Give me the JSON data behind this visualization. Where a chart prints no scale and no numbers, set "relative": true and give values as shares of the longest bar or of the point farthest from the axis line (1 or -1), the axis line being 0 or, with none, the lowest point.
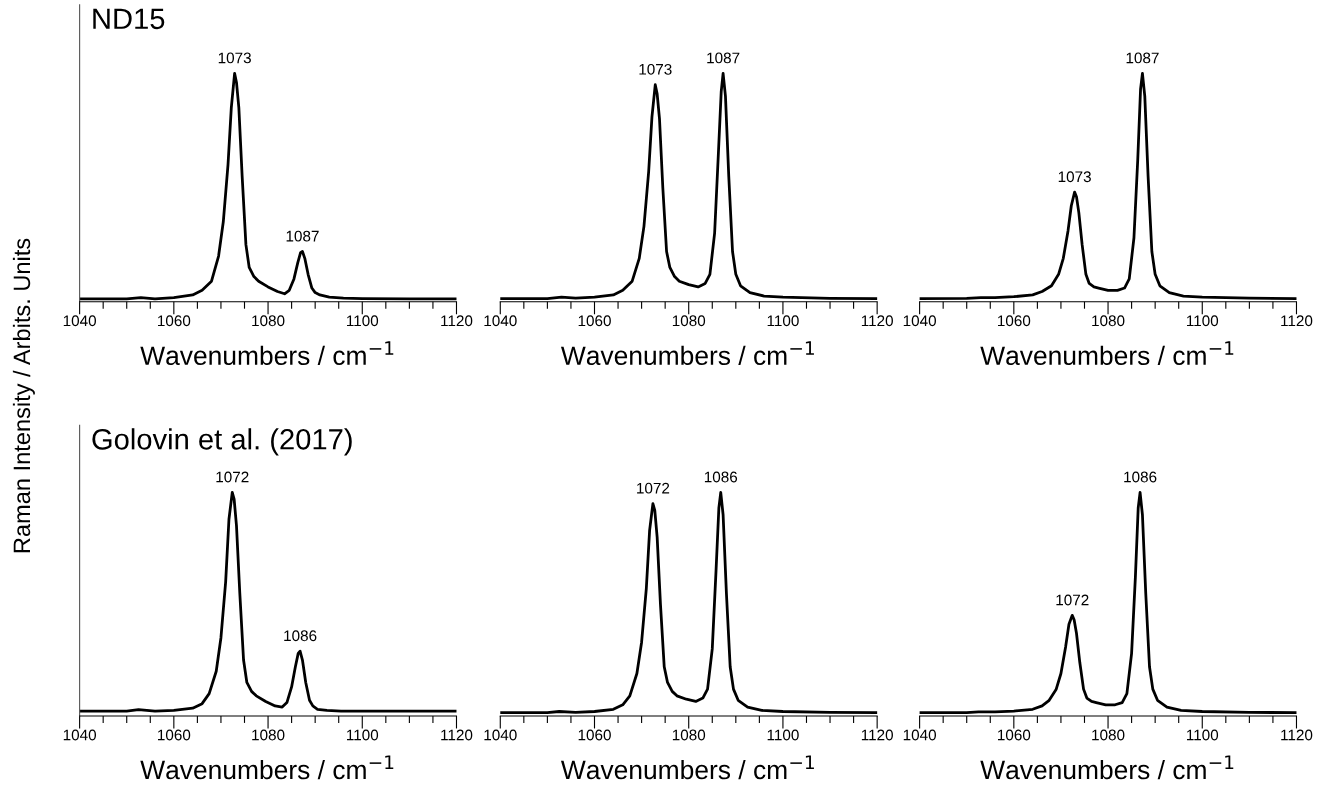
{
  "chart_data": [
    {
      "type": "line",
      "relative": true,
      "title": "ND15",
      "ylabel": "Raman Intensity / Arbits. Units",
      "xlabel": "Wavenumbers / cm$^{−1}$",
      "xlim": [
        1040,
        1120
      ],
      "tick_labels": "x",
      "grid": false,
      "legend": false,
      "marker": "none",
      "line_style": "solid",
      "xticks": [
        1040,
        {
          "value": 1045,
          "label": null
        },
        {
          "value": 1050,
          "label": null
        },
        {
          "value": 1055,
          "label": null
        },
        1060,
        {
          "value": 1065,
          "label": null
        },
        {
          "value": 1070,
          "label": null
        },
        {
          "value": 1075,
          "label": null
        },
        1080,
        {
          "value": 1085,
          "label": null
        },
        {
          "value": 1090,
          "label": null
        },
        {
          "value": 1095,
          "label": null
        },
        1100,
        {
          "value": 1105,
          "label": null
        },
        {
          "value": 1110,
          "label": null
        },
        {
          "value": 1115,
          "label": null
        },
        1120
      ],
      "x": [
        1040,
        1050,
        1053,
        1056,
        1060,
        1064,
        1066,
        1068,
        1069.5,
        1070.5,
        1071.5,
        1072.2,
        1072.9,
        1073.3,
        1073.8,
        1074.5,
        1075.3,
        1076,
        1077,
        1078,
        1080,
        1082,
        1083.5,
        1084.5,
        1085.5,
        1086.3,
        1086.9,
        1087.3,
        1087.8,
        1088.5,
        1089.3,
        1090,
        1091,
        1093,
        1096,
        1100,
        1110,
        1120
      ],
      "series": [
        {
          "color": "#000000",
          "values": [
            0.013,
            0.013,
            0.018,
            0.013,
            0.018,
            0.03,
            0.05,
            0.09,
            0.2,
            0.35,
            0.6,
            0.85,
            1.0,
            0.96,
            0.85,
            0.55,
            0.25,
            0.15,
            0.11,
            0.09,
            0.065,
            0.045,
            0.035,
            0.05,
            0.1,
            0.17,
            0.215,
            0.22,
            0.19,
            0.12,
            0.06,
            0.04,
            0.03,
            0.02,
            0.016,
            0.014,
            0.013,
            0.013
          ]
        }
      ],
      "annotations": [
        {
          "text": "1073",
          "x": 1072.9,
          "y": 1.0
        },
        {
          "text": "1087",
          "x": 1087.3,
          "y": 0.22
        }
      ]
    },
    {
      "type": "line",
      "relative": true,
      "xlabel": "Wavenumbers / cm$^{−1}$",
      "xlim": [
        1040,
        1120
      ],
      "tick_labels": "x",
      "grid": false,
      "legend": false,
      "marker": "none",
      "line_style": "solid",
      "xticks": [
        1040,
        {
          "value": 1045,
          "label": null
        },
        {
          "value": 1050,
          "label": null
        },
        {
          "value": 1055,
          "label": null
        },
        1060,
        {
          "value": 1065,
          "label": null
        },
        {
          "value": 1070,
          "label": null
        },
        {
          "value": 1075,
          "label": null
        },
        1080,
        {
          "value": 1085,
          "label": null
        },
        {
          "value": 1090,
          "label": null
        },
        {
          "value": 1095,
          "label": null
        },
        1100,
        {
          "value": 1105,
          "label": null
        },
        {
          "value": 1110,
          "label": null
        },
        {
          "value": 1115,
          "label": null
        },
        1120
      ],
      "x": [
        1040,
        1050,
        1053,
        1056,
        1060,
        1064,
        1066,
        1068,
        1069.5,
        1070.5,
        1071.5,
        1072.2,
        1072.9,
        1073.3,
        1073.8,
        1074.5,
        1075.3,
        1076,
        1077,
        1078,
        1080,
        1082,
        1083.5,
        1084.5,
        1085.5,
        1086.3,
        1086.9,
        1087.3,
        1087.8,
        1088.5,
        1089.3,
        1090,
        1091,
        1093,
        1096,
        1100,
        1110,
        1120
      ],
      "series": [
        {
          "color": "#000000",
          "values": [
            0.014,
            0.014,
            0.02,
            0.016,
            0.02,
            0.03,
            0.05,
            0.09,
            0.19,
            0.33,
            0.57,
            0.81,
            0.95,
            0.91,
            0.8,
            0.5,
            0.22,
            0.15,
            0.11,
            0.09,
            0.075,
            0.065,
            0.08,
            0.12,
            0.3,
            0.65,
            0.92,
            1.0,
            0.9,
            0.55,
            0.22,
            0.12,
            0.07,
            0.04,
            0.025,
            0.02,
            0.015,
            0.014
          ]
        }
      ],
      "annotations": [
        {
          "text": "1073",
          "x": 1072.9,
          "y": 0.95
        },
        {
          "text": "1087",
          "x": 1087.3,
          "y": 1.0
        }
      ]
    },
    {
      "type": "line",
      "relative": true,
      "xlabel": "Wavenumbers / cm$^{−1}$",
      "xlim": [
        1040,
        1120
      ],
      "tick_labels": "x",
      "grid": false,
      "legend": false,
      "marker": "none",
      "line_style": "solid",
      "xticks": [
        1040,
        {
          "value": 1045,
          "label": null
        },
        {
          "value": 1050,
          "label": null
        },
        {
          "value": 1055,
          "label": null
        },
        1060,
        {
          "value": 1065,
          "label": null
        },
        {
          "value": 1070,
          "label": null
        },
        {
          "value": 1075,
          "label": null
        },
        1080,
        {
          "value": 1085,
          "label": null
        },
        {
          "value": 1090,
          "label": null
        },
        {
          "value": 1095,
          "label": null
        },
        1100,
        {
          "value": 1105,
          "label": null
        },
        {
          "value": 1110,
          "label": null
        },
        {
          "value": 1115,
          "label": null
        },
        1120
      ],
      "x": [
        1040,
        1050,
        1053,
        1056,
        1060,
        1064,
        1066,
        1068,
        1069.5,
        1070.5,
        1071.5,
        1072.2,
        1072.9,
        1073.3,
        1073.8,
        1074.5,
        1075.3,
        1076,
        1077,
        1078,
        1080,
        1082,
        1083.5,
        1084.5,
        1085.5,
        1086.3,
        1086.9,
        1087.3,
        1087.8,
        1088.5,
        1089.3,
        1090,
        1091,
        1093,
        1096,
        1100,
        1110,
        1120
      ],
      "series": [
        {
          "color": "#000000",
          "values": [
            0.014,
            0.015,
            0.018,
            0.018,
            0.022,
            0.03,
            0.045,
            0.07,
            0.12,
            0.19,
            0.31,
            0.42,
            0.48,
            0.46,
            0.39,
            0.25,
            0.12,
            0.08,
            0.065,
            0.06,
            0.05,
            0.05,
            0.06,
            0.1,
            0.28,
            0.62,
            0.93,
            1.0,
            0.9,
            0.55,
            0.22,
            0.12,
            0.07,
            0.04,
            0.025,
            0.02,
            0.016,
            0.014
          ]
        }
      ],
      "annotations": [
        {
          "text": "1073",
          "x": 1072.9,
          "y": 0.48
        },
        {
          "text": "1087",
          "x": 1087.3,
          "y": 1.0
        }
      ]
    },
    {
      "type": "line",
      "relative": true,
      "title": "Golovin et al. (2017)",
      "xlabel": "Wavenumbers / cm$^{−1}$",
      "xlim": [
        1040,
        1120
      ],
      "tick_labels": "x",
      "grid": false,
      "legend": false,
      "marker": "none",
      "line_style": "solid",
      "xticks": [
        1040,
        {
          "value": 1045,
          "label": null
        },
        {
          "value": 1050,
          "label": null
        },
        {
          "value": 1055,
          "label": null
        },
        1060,
        {
          "value": 1065,
          "label": null
        },
        {
          "value": 1070,
          "label": null
        },
        {
          "value": 1075,
          "label": null
        },
        1080,
        {
          "value": 1085,
          "label": null
        },
        {
          "value": 1090,
          "label": null
        },
        {
          "value": 1095,
          "label": null
        },
        1100,
        {
          "value": 1105,
          "label": null
        },
        {
          "value": 1110,
          "label": null
        },
        {
          "value": 1115,
          "label": null
        },
        1120
      ],
      "x": [
        1040,
        1050,
        1052.5,
        1056,
        1060,
        1064,
        1066,
        1067.5,
        1069,
        1070,
        1071,
        1071.7,
        1072.4,
        1072.8,
        1073.3,
        1074,
        1074.8,
        1075.5,
        1076.5,
        1077.5,
        1079.5,
        1081.5,
        1083,
        1084,
        1085,
        1085.8,
        1086.4,
        1086.8,
        1087.3,
        1088,
        1088.8,
        1089.5,
        1090.5,
        1092.5,
        1095.5,
        1100,
        1110,
        1120
      ],
      "series": [
        {
          "color": "#000000",
          "values": [
            0.022,
            0.022,
            0.028,
            0.022,
            0.025,
            0.035,
            0.055,
            0.1,
            0.2,
            0.35,
            0.6,
            0.88,
            1.0,
            0.97,
            0.85,
            0.55,
            0.25,
            0.15,
            0.11,
            0.09,
            0.065,
            0.045,
            0.04,
            0.06,
            0.13,
            0.22,
            0.28,
            0.29,
            0.25,
            0.15,
            0.07,
            0.045,
            0.03,
            0.025,
            0.022,
            0.022,
            0.022,
            0.022
          ]
        }
      ],
      "annotations": [
        {
          "text": "1072",
          "x": 1072.4,
          "y": 1.0
        },
        {
          "text": "1086",
          "x": 1086.8,
          "y": 0.29
        }
      ]
    },
    {
      "type": "line",
      "relative": true,
      "xlabel": "Wavenumbers / cm$^{−1}$",
      "xlim": [
        1040,
        1120
      ],
      "tick_labels": "x",
      "grid": false,
      "legend": false,
      "marker": "none",
      "line_style": "solid",
      "xticks": [
        1040,
        {
          "value": 1045,
          "label": null
        },
        {
          "value": 1050,
          "label": null
        },
        {
          "value": 1055,
          "label": null
        },
        1060,
        {
          "value": 1065,
          "label": null
        },
        {
          "value": 1070,
          "label": null
        },
        {
          "value": 1075,
          "label": null
        },
        1080,
        {
          "value": 1085,
          "label": null
        },
        {
          "value": 1090,
          "label": null
        },
        {
          "value": 1095,
          "label": null
        },
        1100,
        {
          "value": 1105,
          "label": null
        },
        {
          "value": 1110,
          "label": null
        },
        {
          "value": 1115,
          "label": null
        },
        1120
      ],
      "x": [
        1040,
        1050,
        1052.5,
        1056,
        1060,
        1064,
        1066,
        1067.5,
        1069,
        1070,
        1071,
        1071.7,
        1072.4,
        1072.8,
        1073.3,
        1074,
        1074.8,
        1075.5,
        1076.5,
        1077.5,
        1079.5,
        1081.5,
        1083,
        1084,
        1085,
        1085.8,
        1086.4,
        1086.8,
        1087.3,
        1088,
        1088.8,
        1089.5,
        1090.5,
        1092.5,
        1095.5,
        1100,
        1110,
        1120
      ],
      "series": [
        {
          "color": "#000000",
          "values": [
            0.015,
            0.015,
            0.02,
            0.016,
            0.02,
            0.03,
            0.05,
            0.09,
            0.19,
            0.33,
            0.57,
            0.83,
            0.95,
            0.92,
            0.8,
            0.5,
            0.22,
            0.15,
            0.11,
            0.09,
            0.075,
            0.065,
            0.08,
            0.12,
            0.3,
            0.65,
            0.93,
            1.0,
            0.9,
            0.55,
            0.22,
            0.12,
            0.07,
            0.04,
            0.025,
            0.02,
            0.016,
            0.015
          ]
        }
      ],
      "annotations": [
        {
          "text": "1072",
          "x": 1072.4,
          "y": 0.95
        },
        {
          "text": "1086",
          "x": 1086.8,
          "y": 1.0
        }
      ]
    },
    {
      "type": "line",
      "relative": true,
      "xlabel": "Wavenumbers / cm$^{−1}$",
      "xlim": [
        1040,
        1120
      ],
      "tick_labels": "x",
      "grid": false,
      "legend": false,
      "marker": "none",
      "line_style": "solid",
      "xticks": [
        1040,
        {
          "value": 1045,
          "label": null
        },
        {
          "value": 1050,
          "label": null
        },
        {
          "value": 1055,
          "label": null
        },
        1060,
        {
          "value": 1065,
          "label": null
        },
        {
          "value": 1070,
          "label": null
        },
        {
          "value": 1075,
          "label": null
        },
        1080,
        {
          "value": 1085,
          "label": null
        },
        {
          "value": 1090,
          "label": null
        },
        {
          "value": 1095,
          "label": null
        },
        1100,
        {
          "value": 1105,
          "label": null
        },
        {
          "value": 1110,
          "label": null
        },
        {
          "value": 1115,
          "label": null
        },
        1120
      ],
      "x": [
        1040,
        1050,
        1052.5,
        1056,
        1060,
        1064,
        1066,
        1067.5,
        1069,
        1070,
        1071,
        1071.7,
        1072.4,
        1072.8,
        1073.3,
        1074,
        1074.8,
        1075.5,
        1076.5,
        1077.5,
        1079.5,
        1081.5,
        1083,
        1084,
        1085,
        1085.8,
        1086.4,
        1086.8,
        1087.3,
        1088,
        1088.8,
        1089.5,
        1090.5,
        1092.5,
        1095.5,
        1100,
        1110,
        1120
      ],
      "series": [
        {
          "color": "#000000",
          "values": [
            0.015,
            0.015,
            0.018,
            0.018,
            0.022,
            0.03,
            0.045,
            0.07,
            0.12,
            0.19,
            0.31,
            0.41,
            0.45,
            0.43,
            0.37,
            0.24,
            0.12,
            0.08,
            0.065,
            0.06,
            0.05,
            0.05,
            0.06,
            0.1,
            0.28,
            0.62,
            0.93,
            1.0,
            0.9,
            0.55,
            0.22,
            0.12,
            0.07,
            0.04,
            0.025,
            0.02,
            0.016,
            0.015
          ]
        }
      ],
      "annotations": [
        {
          "text": "1072",
          "x": 1072.4,
          "y": 0.45
        },
        {
          "text": "1086",
          "x": 1086.8,
          "y": 1.0
        }
      ]
    }
  ]
}
